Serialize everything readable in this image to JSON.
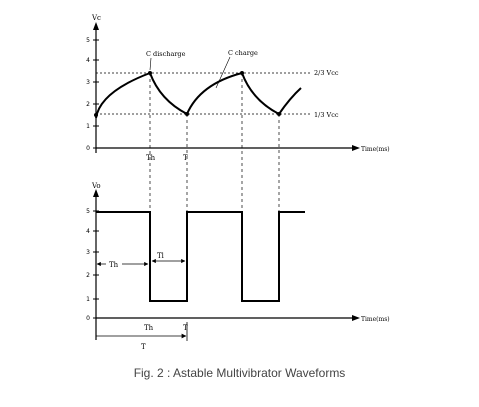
{
  "top_plot": {
    "y_axis_label": "Vc",
    "x_axis_label": "Time(ms)",
    "tick_labels": [
      "0",
      "1",
      "2",
      "3",
      "4",
      "5"
    ],
    "upper_threshold_label": "2/3 Vcc",
    "lower_threshold_label": "1/3 Vcc",
    "discharge_label": "C discharge",
    "charge_label": "C charge",
    "th_marker": "Th",
    "t_marker": "T"
  },
  "bottom_plot": {
    "y_axis_label": "Vo",
    "x_axis_label": "Time(ms)",
    "tick_labels": [
      "0",
      "1",
      "2",
      "3",
      "4",
      "5"
    ],
    "th_arrow_label": "Th",
    "tl_arrow_label": "Tl",
    "th_bottom_label": "Th",
    "t_bottom_label": "T",
    "period_label": "T"
  },
  "caption": "Fig. 2 : Astable Multivibrator Waveforms"
}
